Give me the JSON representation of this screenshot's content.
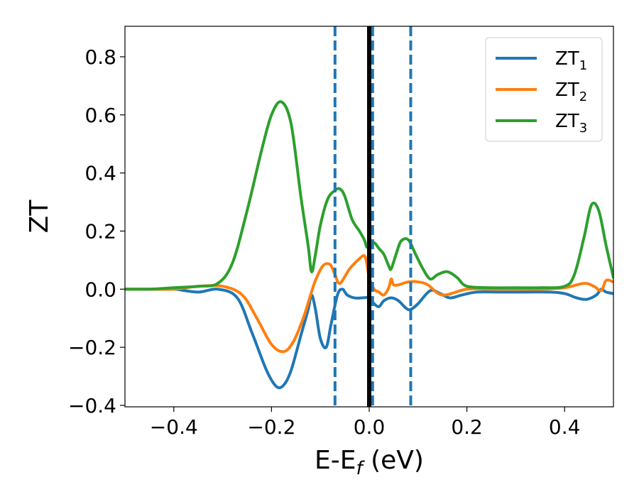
{
  "chart_data": {
    "type": "line",
    "title": "",
    "xlabel": "E-E",
    "xlabel_sub": "f",
    "xlabel_unit": " (eV)",
    "ylabel": "ZT",
    "xlim": [
      -0.5,
      0.5
    ],
    "ylim": [
      -0.405,
      0.905
    ],
    "xticks": [
      -0.4,
      -0.2,
      0.0,
      0.2,
      0.4
    ],
    "xtick_labels": [
      "−0.4",
      "−0.2",
      "0.0",
      "0.2",
      "0.4"
    ],
    "yticks": [
      -0.4,
      -0.2,
      0.0,
      0.2,
      0.4,
      0.6,
      0.8
    ],
    "ytick_labels": [
      "−0.4",
      "−0.2",
      "0.0",
      "0.2",
      "0.4",
      "0.6",
      "0.8"
    ],
    "grid": false,
    "legend_position": "top-right",
    "vertical_lines": [
      {
        "x": -0.07,
        "style": "dashed",
        "color": "#1f77b4"
      },
      {
        "x": 0.0,
        "style": "solid",
        "color": "#000000"
      },
      {
        "x": 0.007,
        "style": "dashed",
        "color": "#1f77b4"
      },
      {
        "x": 0.085,
        "style": "dashed",
        "color": "#1f77b4"
      }
    ],
    "series": [
      {
        "name": "ZT",
        "name_sub": "1",
        "color": "#1f77b4",
        "x": [
          -0.5,
          -0.45,
          -0.4,
          -0.35,
          -0.31,
          -0.27,
          -0.24,
          -0.21,
          -0.19,
          -0.175,
          -0.16,
          -0.14,
          -0.125,
          -0.118,
          -0.11,
          -0.1,
          -0.088,
          -0.078,
          -0.065,
          -0.055,
          -0.045,
          -0.03,
          -0.015,
          0.0,
          0.01,
          0.02,
          0.03,
          0.045,
          0.06,
          0.075,
          0.085,
          0.1,
          0.125,
          0.145,
          0.165,
          0.19,
          0.22,
          0.27,
          0.32,
          0.37,
          0.4,
          0.425,
          0.445,
          0.465,
          0.475,
          0.485,
          0.5
        ],
        "y": [
          0.0,
          0.0,
          0.0,
          -0.01,
          0.0,
          -0.03,
          -0.15,
          -0.28,
          -0.335,
          -0.33,
          -0.28,
          -0.16,
          -0.07,
          -0.02,
          -0.07,
          -0.17,
          -0.2,
          -0.12,
          -0.02,
          0.0,
          -0.02,
          -0.03,
          -0.03,
          -0.03,
          -0.05,
          -0.06,
          -0.04,
          -0.03,
          -0.04,
          -0.065,
          -0.07,
          -0.05,
          -0.005,
          -0.015,
          -0.03,
          -0.02,
          -0.01,
          -0.01,
          -0.01,
          -0.01,
          -0.015,
          -0.03,
          -0.035,
          -0.02,
          0.0,
          -0.01,
          -0.015
        ]
      },
      {
        "name": "ZT",
        "name_sub": "2",
        "color": "#ff7f0e",
        "x": [
          -0.5,
          -0.45,
          -0.4,
          -0.35,
          -0.3,
          -0.26,
          -0.23,
          -0.2,
          -0.175,
          -0.155,
          -0.135,
          -0.12,
          -0.11,
          -0.095,
          -0.08,
          -0.07,
          -0.06,
          -0.04,
          -0.02,
          -0.01,
          -0.005,
          0.0,
          0.01,
          0.02,
          0.03,
          0.04,
          0.045,
          0.05,
          0.06,
          0.08,
          0.1,
          0.12,
          0.15,
          0.2,
          0.25,
          0.3,
          0.35,
          0.4,
          0.44,
          0.46,
          0.475,
          0.485,
          0.5
        ],
        "y": [
          0.0,
          0.0,
          0.0,
          0.01,
          0.01,
          -0.02,
          -0.1,
          -0.19,
          -0.215,
          -0.18,
          -0.1,
          -0.02,
          0.03,
          0.08,
          0.085,
          0.05,
          0.02,
          0.07,
          0.105,
          0.115,
          0.09,
          0.04,
          0.0,
          -0.01,
          -0.02,
          0.005,
          0.035,
          0.015,
          0.015,
          0.025,
          0.025,
          0.015,
          -0.02,
          0.0,
          0.0,
          0.0,
          0.0,
          0.005,
          0.02,
          0.01,
          -0.005,
          0.03,
          0.025
        ]
      },
      {
        "name": "ZT",
        "name_sub": "3",
        "color": "#2ca02c",
        "x": [
          -0.5,
          -0.45,
          -0.4,
          -0.35,
          -0.31,
          -0.28,
          -0.25,
          -0.22,
          -0.2,
          -0.18,
          -0.16,
          -0.14,
          -0.125,
          -0.118,
          -0.11,
          -0.1,
          -0.085,
          -0.07,
          -0.06,
          -0.05,
          -0.035,
          -0.02,
          -0.01,
          -0.005,
          0.0,
          0.01,
          0.02,
          0.03,
          0.04,
          0.045,
          0.055,
          0.065,
          0.08,
          0.095,
          0.11,
          0.125,
          0.14,
          0.16,
          0.18,
          0.2,
          0.25,
          0.3,
          0.35,
          0.4,
          0.42,
          0.44,
          0.455,
          0.47,
          0.485,
          0.5
        ],
        "y": [
          0.0,
          0.0,
          0.005,
          0.01,
          0.02,
          0.09,
          0.27,
          0.48,
          0.6,
          0.645,
          0.57,
          0.32,
          0.15,
          0.06,
          0.12,
          0.22,
          0.31,
          0.34,
          0.345,
          0.32,
          0.24,
          0.2,
          0.17,
          0.145,
          0.15,
          0.16,
          0.14,
          0.12,
          0.08,
          0.07,
          0.12,
          0.165,
          0.17,
          0.12,
          0.07,
          0.035,
          0.05,
          0.06,
          0.04,
          0.01,
          0.005,
          0.005,
          0.005,
          0.01,
          0.05,
          0.18,
          0.29,
          0.27,
          0.15,
          0.04
        ]
      }
    ]
  }
}
